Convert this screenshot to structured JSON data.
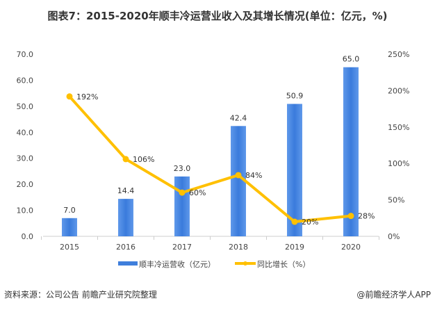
{
  "title": "图表7：2015-2020年顺丰冷运营业收入及其增长情况(单位：亿元，%)",
  "source": "资料来源：公司公告 前瞻产业研究院整理",
  "credit": "@前瞻经济学人APP",
  "chart_data": {
    "type": "bar+line",
    "categories": [
      "2015",
      "2016",
      "2017",
      "2018",
      "2019",
      "2020"
    ],
    "series": [
      {
        "name": "顺丰冷运营收（亿元）",
        "type": "bar",
        "axis": "left",
        "color": "#3f7fdc",
        "values": [
          7.0,
          14.4,
          23.0,
          42.4,
          50.9,
          65.0
        ],
        "labels": [
          "7.0",
          "14.4",
          "23.0",
          "42.4",
          "50.9",
          "65.0"
        ]
      },
      {
        "name": "同比增长（%）",
        "type": "line",
        "axis": "right",
        "color": "#ffc000",
        "values": [
          192,
          106,
          60,
          84,
          20,
          28
        ],
        "labels": [
          "192%",
          "106%",
          "60%",
          "84%",
          "20%",
          "28%"
        ]
      }
    ],
    "left_axis": {
      "range": [
        0,
        70
      ],
      "ticks": [
        "0.0",
        "10.0",
        "20.0",
        "30.0",
        "40.0",
        "50.0",
        "60.0",
        "70.0"
      ]
    },
    "right_axis": {
      "range": [
        0,
        250
      ],
      "ticks": [
        "0%",
        "50%",
        "100%",
        "150%",
        "200%",
        "250%"
      ]
    },
    "grid": false,
    "legend": "bottom"
  }
}
